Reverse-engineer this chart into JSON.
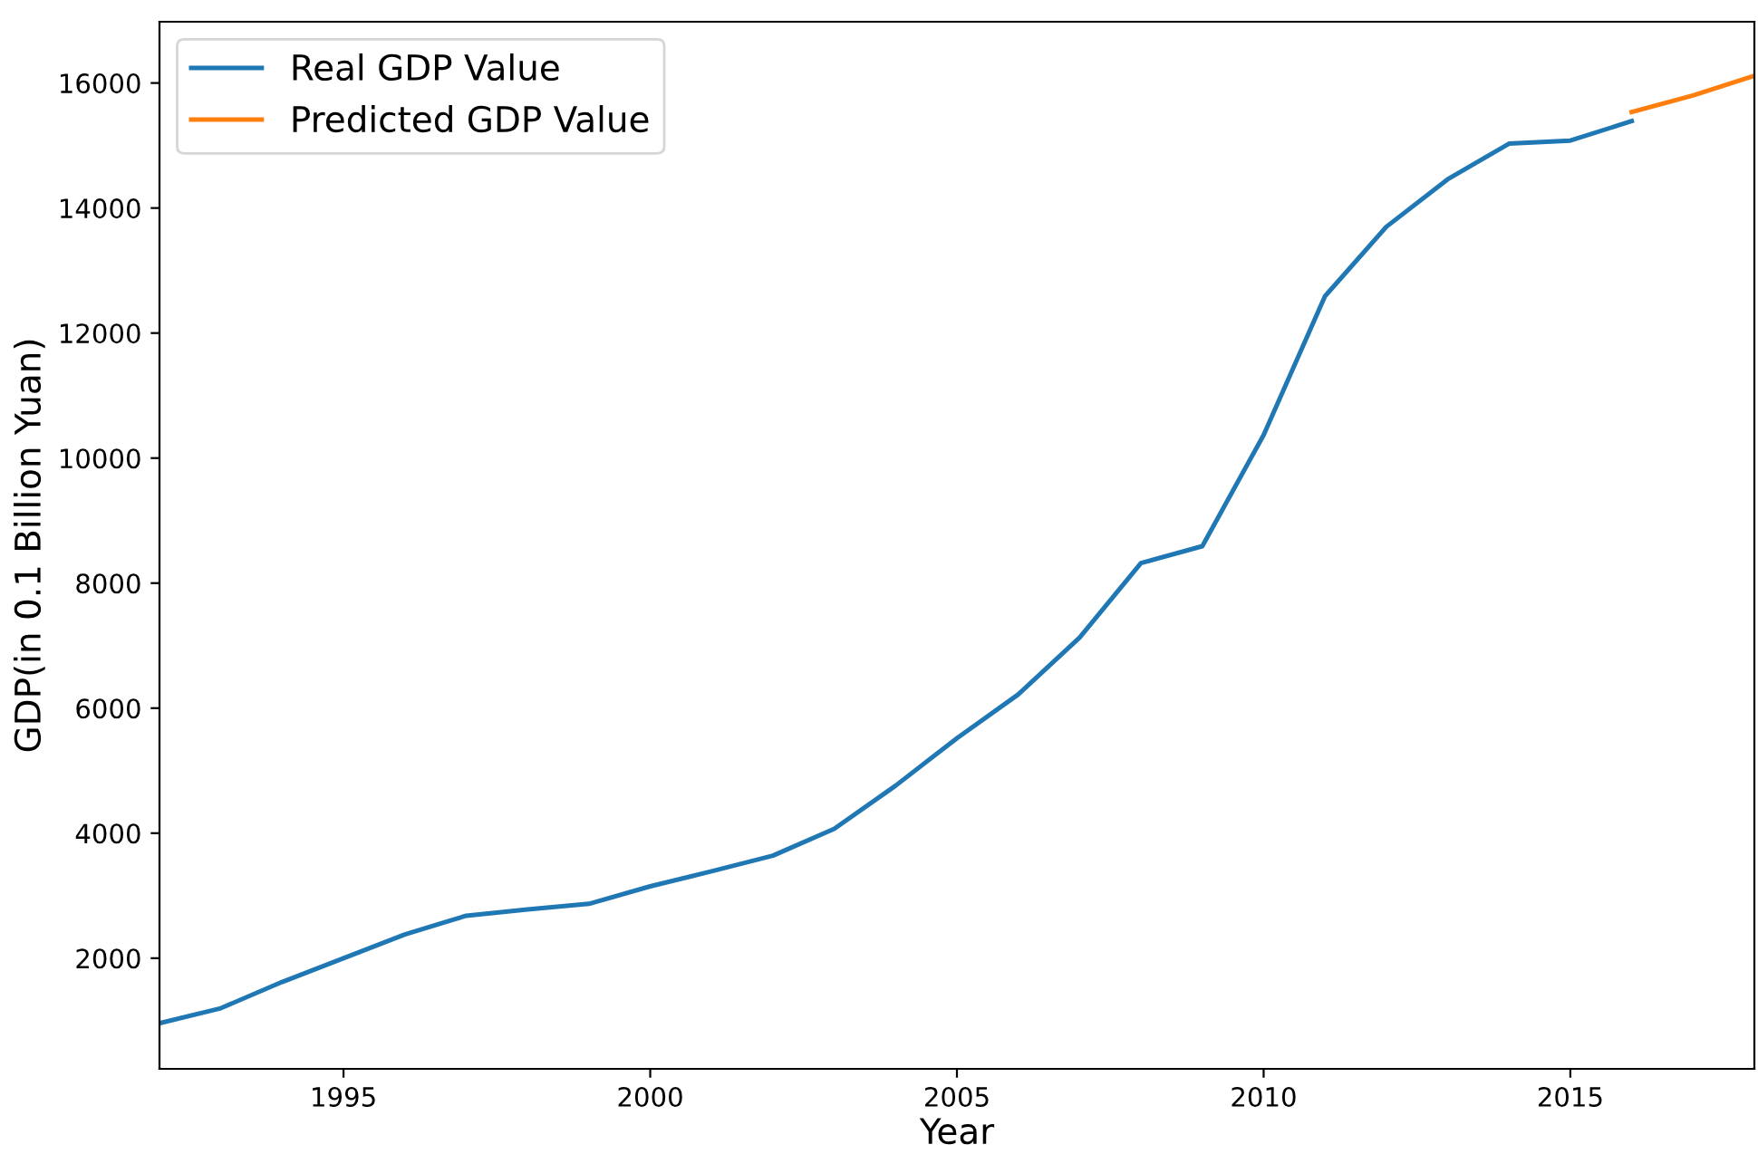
{
  "chart_data": {
    "type": "line",
    "xlabel": "Year",
    "ylabel": "GDP(in 0.1 Billion Yuan)",
    "xlim": [
      1992,
      2018
    ],
    "xticks": [
      1995,
      2000,
      2005,
      2010,
      2015
    ],
    "ylim": [
      230,
      16980
    ],
    "yticks": [
      2000,
      4000,
      6000,
      8000,
      10000,
      12000,
      14000,
      16000
    ],
    "grid": false,
    "legend": "top left",
    "series": [
      {
        "name": "Real GDP Value",
        "color": "#1f77b4",
        "x": [
          1992,
          1993,
          1994,
          1995,
          1996,
          1997,
          1998,
          1999,
          2000,
          2001,
          2002,
          2003,
          2004,
          2005,
          2006,
          2007,
          2008,
          2009,
          2010,
          2011,
          2012,
          2013,
          2014,
          2015,
          2016
        ],
        "values": [
          960,
          1200,
          1620,
          2000,
          2380,
          2680,
          2780,
          2870,
          3150,
          3390,
          3640,
          4070,
          4760,
          5520,
          6220,
          7130,
          8320,
          8590,
          10370,
          12590,
          13700,
          14460,
          15030,
          15080,
          15390
        ]
      },
      {
        "name": "Predicted GDP Value",
        "color": "#ff7f0e",
        "x": [
          2016,
          2017,
          2018
        ],
        "values": [
          15536,
          15800,
          16116
        ]
      }
    ]
  }
}
